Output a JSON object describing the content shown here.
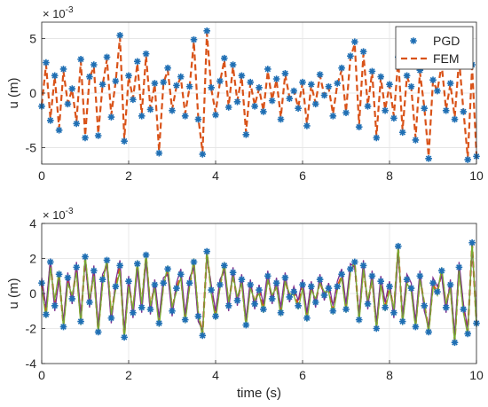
{
  "figure": {
    "background": "#ffffff"
  },
  "chart_data": [
    {
      "type": "line",
      "title": "",
      "xlabel": "",
      "ylabel": "u (m)",
      "exponent_label": "× 10",
      "exponent_power": "-3",
      "xlim": [
        0,
        10
      ],
      "ylim": [
        -6.5,
        6.5
      ],
      "xticks": [
        0,
        2,
        4,
        6,
        8,
        10
      ],
      "yticks": [
        -5,
        0,
        5
      ],
      "grid": true,
      "legend": "top-right",
      "x": [
        0.0,
        0.1,
        0.2,
        0.3,
        0.4,
        0.5,
        0.6,
        0.7,
        0.8,
        0.9,
        1.0,
        1.1,
        1.2,
        1.3,
        1.4,
        1.5,
        1.6,
        1.7,
        1.8,
        1.9,
        2.0,
        2.1,
        2.2,
        2.3,
        2.4,
        2.5,
        2.6,
        2.7,
        2.8,
        2.9,
        3.0,
        3.1,
        3.2,
        3.3,
        3.4,
        3.5,
        3.6,
        3.7,
        3.8,
        3.9,
        4.0,
        4.1,
        4.2,
        4.3,
        4.4,
        4.5,
        4.6,
        4.7,
        4.8,
        4.9,
        5.0,
        5.1,
        5.2,
        5.3,
        5.4,
        5.5,
        5.6,
        5.7,
        5.8,
        5.9,
        6.0,
        6.1,
        6.2,
        6.3,
        6.4,
        6.5,
        6.6,
        6.7,
        6.8,
        6.9,
        7.0,
        7.1,
        7.2,
        7.3,
        7.4,
        7.5,
        7.6,
        7.7,
        7.8,
        7.9,
        8.0,
        8.1,
        8.2,
        8.3,
        8.4,
        8.5,
        8.6,
        8.7,
        8.8,
        8.9,
        9.0,
        9.1,
        9.2,
        9.3,
        9.4,
        9.5,
        9.6,
        9.7,
        9.8,
        9.9,
        10.0
      ],
      "series": [
        {
          "name": "PGD",
          "color": "#1f6fb4",
          "marker": "asterisk",
          "values": [
            -1.2,
            2.8,
            -2.5,
            1.6,
            -3.4,
            2.2,
            -1.0,
            0.4,
            -2.8,
            3.1,
            -4.1,
            1.5,
            2.6,
            -3.9,
            0.8,
            3.3,
            -2.2,
            1.1,
            5.3,
            -4.4,
            1.6,
            -0.6,
            2.9,
            -2.1,
            3.6,
            -1.5,
            0.9,
            -5.5,
            1.0,
            2.3,
            -1.6,
            0.7,
            1.5,
            -2.1,
            0.6,
            4.9,
            -2.4,
            -5.6,
            5.7,
            0.5,
            -2.0,
            1.1,
            3.2,
            -1.3,
            2.6,
            -0.8,
            1.6,
            -3.8,
            1.0,
            -1.2,
            0.5,
            -1.7,
            2.2,
            -0.7,
            1.3,
            -2.4,
            1.8,
            -0.5,
            0.2,
            -1.4,
            1.0,
            -3.0,
            0.8,
            -1.0,
            1.7,
            -0.2,
            0.6,
            -2.1,
            0.9,
            2.3,
            -1.8,
            3.4,
            4.7,
            -3.1,
            3.8,
            -1.2,
            2.0,
            -4.1,
            1.5,
            -1.6,
            0.8,
            -2.3,
            3.3,
            -3.6,
            1.6,
            0.6,
            -4.3,
            2.1,
            -1.4,
            -6.0,
            1.2,
            0.2,
            2.8,
            -1.6,
            0.9,
            -2.4,
            3.3,
            -1.7,
            -6.1,
            2.6,
            -5.8
          ]
        },
        {
          "name": "FEM",
          "color": "#d95319",
          "line": "dashed",
          "values": [
            -1.1,
            2.6,
            -2.3,
            1.5,
            -3.2,
            2.0,
            -0.9,
            0.3,
            -2.6,
            2.9,
            -3.9,
            1.4,
            2.4,
            -3.7,
            0.7,
            3.1,
            -2.0,
            1.0,
            5.1,
            -4.2,
            1.5,
            -0.5,
            2.7,
            -1.9,
            3.4,
            -1.4,
            0.8,
            -5.3,
            0.9,
            2.1,
            -1.5,
            0.6,
            1.4,
            -1.9,
            0.5,
            4.7,
            -2.2,
            -5.4,
            5.5,
            0.4,
            -1.8,
            1.0,
            3.0,
            -1.2,
            2.4,
            -0.7,
            1.5,
            -3.6,
            0.9,
            -1.1,
            0.4,
            -1.6,
            2.0,
            -0.6,
            1.2,
            -2.2,
            1.7,
            -0.4,
            0.2,
            -1.3,
            0.9,
            -2.8,
            0.7,
            -0.9,
            1.6,
            -0.2,
            0.5,
            -1.9,
            0.8,
            2.1,
            -1.7,
            3.2,
            4.5,
            -2.9,
            3.6,
            -1.1,
            1.9,
            -3.9,
            1.4,
            -1.5,
            0.7,
            -2.1,
            3.1,
            -3.4,
            1.5,
            0.5,
            -4.1,
            1.9,
            -1.3,
            -5.8,
            1.1,
            0.2,
            2.6,
            -1.5,
            0.8,
            -2.2,
            3.1,
            -1.6,
            -5.9,
            2.4,
            -5.6
          ]
        }
      ]
    },
    {
      "type": "line",
      "title": "",
      "xlabel": "time (s)",
      "ylabel": "u (m)",
      "exponent_label": "× 10",
      "exponent_power": "-3",
      "xlim": [
        0,
        10
      ],
      "ylim": [
        -4,
        4
      ],
      "xticks": [
        0,
        2,
        4,
        6,
        8,
        10
      ],
      "yticks": [
        -4,
        -2,
        0,
        2,
        4
      ],
      "grid": true,
      "x": [
        0.0,
        0.1,
        0.2,
        0.3,
        0.4,
        0.5,
        0.6,
        0.7,
        0.8,
        0.9,
        1.0,
        1.1,
        1.2,
        1.3,
        1.4,
        1.5,
        1.6,
        1.7,
        1.8,
        1.9,
        2.0,
        2.1,
        2.2,
        2.3,
        2.4,
        2.5,
        2.6,
        2.7,
        2.8,
        2.9,
        3.0,
        3.1,
        3.2,
        3.3,
        3.4,
        3.5,
        3.6,
        3.7,
        3.8,
        3.9,
        4.0,
        4.1,
        4.2,
        4.3,
        4.4,
        4.5,
        4.6,
        4.7,
        4.8,
        4.9,
        5.0,
        5.1,
        5.2,
        5.3,
        5.4,
        5.5,
        5.6,
        5.7,
        5.8,
        5.9,
        6.0,
        6.1,
        6.2,
        6.3,
        6.4,
        6.5,
        6.6,
        6.7,
        6.8,
        6.9,
        7.0,
        7.1,
        7.2,
        7.3,
        7.4,
        7.5,
        7.6,
        7.7,
        7.8,
        7.9,
        8.0,
        8.1,
        8.2,
        8.3,
        8.4,
        8.5,
        8.6,
        8.7,
        8.8,
        8.9,
        9.0,
        9.1,
        9.2,
        9.3,
        9.4,
        9.5,
        9.6,
        9.7,
        9.8,
        9.9,
        10.0
      ],
      "series": [
        {
          "color": "#1f6fb4",
          "marker": "asterisk",
          "values": [
            0.6,
            -1.2,
            1.8,
            -0.7,
            1.1,
            -1.9,
            0.9,
            -0.3,
            1.5,
            -1.6,
            2.1,
            -0.5,
            1.3,
            -2.2,
            0.8,
            1.9,
            -1.4,
            0.4,
            1.6,
            -2.5,
            0.7,
            -1.1,
            1.7,
            -0.8,
            2.2,
            -0.9,
            0.5,
            -1.7,
            0.6,
            1.4,
            -1.0,
            0.3,
            1.1,
            -1.5,
            0.6,
            1.8,
            -1.3,
            -2.4,
            2.4,
            0.2,
            -1.3,
            0.5,
            1.6,
            -0.7,
            1.2,
            -0.4,
            0.8,
            -1.8,
            0.5,
            -0.6,
            0.2,
            -0.9,
            1.0,
            -0.3,
            0.6,
            -1.1,
            0.9,
            -0.2,
            0.1,
            -0.7,
            0.5,
            -1.4,
            0.4,
            -0.5,
            0.8,
            -0.1,
            0.3,
            -1.0,
            0.4,
            1.1,
            -0.9,
            1.4,
            1.8,
            -1.5,
            1.6,
            -0.6,
            1.0,
            -2.0,
            0.7,
            -0.8,
            0.4,
            -1.1,
            2.7,
            -1.6,
            0.8,
            0.3,
            -1.9,
            1.0,
            -0.7,
            -2.2,
            0.6,
            0.1,
            1.3,
            -0.8,
            0.5,
            -2.8,
            1.5,
            -0.9,
            -2.3,
            2.9,
            -1.7
          ]
        },
        {
          "color": "#d95319",
          "line": "dashed",
          "values": [
            0.5,
            -1.1,
            1.7,
            -0.6,
            1.0,
            -1.8,
            0.8,
            -0.3,
            1.4,
            -1.5,
            2.0,
            -0.5,
            1.2,
            -2.1,
            0.7,
            1.8,
            -1.3,
            0.4,
            1.5,
            -2.4,
            0.6,
            -1.0,
            1.6,
            -0.7,
            2.1,
            -0.8,
            0.5,
            -1.6,
            0.5,
            1.3,
            -0.9,
            0.3,
            1.0,
            -1.4,
            0.5,
            1.7,
            -1.2,
            -2.3,
            2.3,
            0.2,
            -1.2,
            0.5,
            1.5,
            -0.6,
            1.1,
            -0.4,
            0.7,
            -1.7,
            0.5,
            -0.5,
            0.2,
            -0.8,
            0.9,
            -0.3,
            0.5,
            -1.0,
            0.8,
            -0.2,
            0.1,
            -0.6,
            0.5,
            -1.3,
            0.4,
            -0.5,
            0.7,
            -0.1,
            0.3,
            -0.9,
            0.4,
            1.0,
            -0.8,
            1.3,
            1.7,
            -1.4,
            1.5,
            -0.6,
            0.9,
            -1.9,
            0.6,
            -0.7,
            0.4,
            -1.0,
            2.6,
            -1.5,
            0.7,
            0.3,
            -1.8,
            0.9,
            -0.6,
            -2.1,
            0.5,
            0.1,
            1.2,
            -0.7,
            0.5,
            -2.7,
            1.4,
            -0.8,
            -2.2,
            2.8,
            -1.6
          ]
        },
        {
          "color": "#7e2f8e",
          "line": "solid",
          "values": [
            0.9,
            -0.8,
            2.0,
            -1.0,
            0.8,
            -1.6,
            1.2,
            -0.6,
            1.8,
            -1.3,
            1.9,
            -0.8,
            1.6,
            -1.9,
            1.1,
            1.6,
            -1.7,
            0.7,
            1.9,
            -2.2,
            1.0,
            -1.4,
            1.4,
            -1.1,
            1.9,
            -1.2,
            0.8,
            -1.4,
            0.9,
            1.1,
            -1.3,
            0.6,
            1.4,
            -1.2,
            0.9,
            1.5,
            -1.6,
            -2.1,
            2.1,
            0.5,
            -1.0,
            0.8,
            1.3,
            -1.0,
            1.5,
            -0.7,
            1.1,
            -1.5,
            0.8,
            -0.9,
            0.5,
            -0.6,
            1.3,
            -0.6,
            0.9,
            -0.8,
            1.2,
            -0.5,
            0.4,
            -0.4,
            0.8,
            -1.1,
            0.7,
            -0.8,
            1.1,
            -0.4,
            0.6,
            -0.7,
            0.7,
            1.4,
            -0.6,
            1.7,
            1.5,
            -1.2,
            1.9,
            -0.9,
            1.3,
            -1.7,
            1.0,
            -0.5,
            0.7,
            -1.4,
            2.4,
            -1.3,
            1.1,
            0.6,
            -1.6,
            1.3,
            -1.0,
            -1.9,
            0.9,
            0.4,
            1.0,
            -1.1,
            0.8,
            -2.4,
            1.8,
            -0.6,
            -2.0,
            2.6,
            -1.4
          ]
        },
        {
          "color": "#77ac30",
          "line": "solid",
          "values": [
            0.3,
            -1.4,
            1.5,
            -0.4,
            1.3,
            -2.0,
            0.6,
            -0.1,
            1.2,
            -1.8,
            2.2,
            -0.3,
            1.0,
            -2.3,
            0.5,
            2.0,
            -1.2,
            0.2,
            1.3,
            -2.6,
            0.4,
            -0.9,
            1.9,
            -0.6,
            2.3,
            -0.7,
            0.3,
            -1.9,
            0.4,
            1.6,
            -0.8,
            0.1,
            0.9,
            -1.7,
            0.4,
            2.0,
            -1.1,
            -2.5,
            2.5,
            0.0,
            -1.5,
            0.3,
            1.8,
            -0.5,
            1.0,
            -0.2,
            0.6,
            -1.9,
            0.3,
            -0.4,
            0.0,
            -1.1,
            0.8,
            -0.1,
            0.4,
            -1.3,
            0.7,
            0.0,
            -0.1,
            -0.9,
            0.3,
            -1.6,
            0.2,
            -0.3,
            0.6,
            0.1,
            0.1,
            -1.2,
            0.2,
            0.9,
            -1.1,
            1.2,
            1.9,
            -1.7,
            1.4,
            -0.4,
            0.8,
            -2.1,
            0.5,
            -1.0,
            0.2,
            -0.9,
            2.8,
            -1.8,
            0.6,
            0.1,
            -2.0,
            0.8,
            -0.5,
            -2.3,
            0.4,
            -0.1,
            1.5,
            -0.6,
            0.3,
            -2.9,
            1.3,
            -1.1,
            -2.4,
            3.0,
            -1.9
          ]
        }
      ]
    }
  ]
}
